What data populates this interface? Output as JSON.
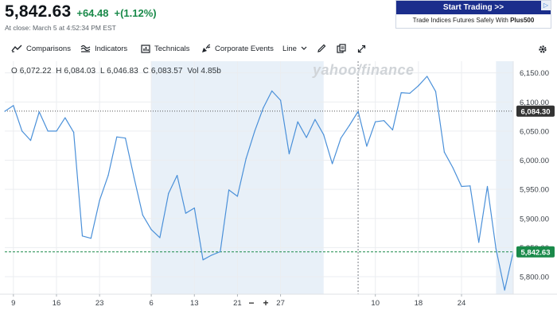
{
  "quote": {
    "price": "5,842.63",
    "change": "+64.48",
    "change_pct": "+(1.12%)",
    "close_text": "At close: March 5 at 4:52:34 PM EST",
    "up_color": "#1a8a4a"
  },
  "ad": {
    "button_label": "Start Trading >>",
    "text_prefix": "Trade Indices Futures Safely With ",
    "text_brand": "Plus500"
  },
  "toolbar": {
    "comparisons": "Comparisons",
    "indicators": "Indicators",
    "technicals": "Technicals",
    "corporate_events": "Corporate Events",
    "chart_type": "Line",
    "icons": [
      "compare-icon",
      "indicators-icon",
      "technicals-icon",
      "corporate-events-icon",
      "chevron-down-icon",
      "draw-pencil-icon",
      "copy-icon",
      "expand-icon",
      "gear-icon"
    ]
  },
  "ohlc": {
    "open": "O 6,072.22",
    "high": "H 6,084.03",
    "low": "L 6,046.83",
    "close": "C 6,083.57",
    "vol": "Vol 4.85b"
  },
  "watermark": "yahoo/finance",
  "zoom": {
    "minus": "−",
    "plus": "+"
  },
  "chart_data": {
    "type": "line",
    "x": [
      0,
      1,
      2,
      3,
      4,
      5,
      6,
      7,
      8,
      9,
      10,
      11,
      12,
      13,
      14,
      15,
      16,
      17,
      18,
      19,
      20,
      21,
      22,
      23,
      24,
      25,
      26,
      27,
      28,
      29,
      30,
      31,
      32,
      33,
      34,
      35,
      36,
      37,
      38,
      39,
      40,
      41,
      42,
      43,
      44,
      45,
      46,
      47,
      48,
      49,
      50,
      51,
      52,
      53,
      54,
      55,
      56,
      57,
      58,
      59
    ],
    "values": [
      6084,
      6094,
      6050,
      6034,
      6083,
      6050,
      6050,
      6073,
      6048,
      5870,
      5866,
      5931,
      5974,
      6040,
      6038,
      5970,
      5906,
      5881,
      5867,
      5943,
      5974,
      5909,
      5918,
      5829,
      5837,
      5843,
      5949,
      5938,
      6003,
      6050,
      6090,
      6119,
      6103,
      6011,
      6066,
      6039,
      6070,
      6044,
      5994,
      6038,
      6060,
      6084,
      6024,
      6066,
      6068,
      6052,
      6116,
      6115,
      6128,
      6144,
      6118,
      6014,
      5987,
      5955,
      5956,
      5859,
      5955,
      5848,
      5777,
      5842.63
    ],
    "tick_labels": [
      "9",
      "16",
      "23",
      "6",
      "13",
      "21",
      "27",
      "10",
      "18",
      "24"
    ],
    "tick_index": [
      1,
      6,
      11,
      17,
      22,
      27,
      32,
      43,
      48,
      53
    ],
    "y_ticks": [
      "6,150.00",
      "6,100.00",
      "6,050.00",
      "6,000.00",
      "5,950.00",
      "5,900.00",
      "5,850.00",
      "5,800.00"
    ],
    "ylim": [
      5770,
      6170
    ],
    "y_tick_values": [
      6150,
      6100,
      6050,
      6000,
      5950,
      5900,
      5850,
      5800
    ],
    "prev_close": 6084.3,
    "prev_close_label": "6,084.30",
    "current": 5842.63,
    "current_label": "5,842.63",
    "shaded_ranges": [
      [
        17,
        37
      ],
      [
        57,
        59
      ]
    ],
    "month_divider_index": 41,
    "line_color": "#4a90d9",
    "shade_color": "#e8f0f8",
    "prev_close_color": "#333333",
    "current_color": "#1a8a4a"
  }
}
